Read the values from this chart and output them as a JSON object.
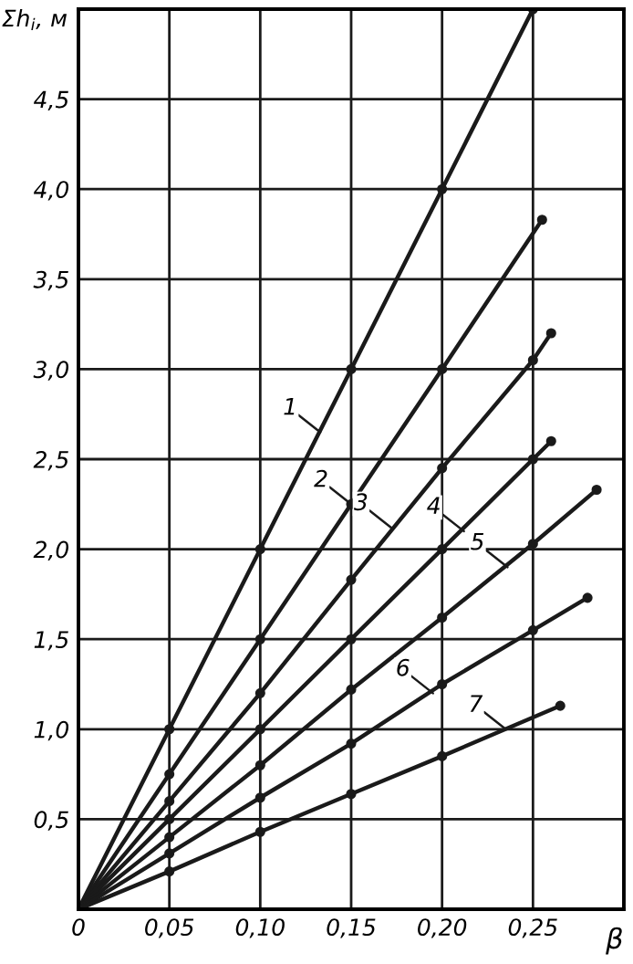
{
  "chart_data": {
    "type": "line",
    "xlabel": "β",
    "ylabel": "Σh$_{i}$, м",
    "xlim": [
      0,
      0.3
    ],
    "ylim": [
      0,
      5
    ],
    "xticks": [
      0,
      {
        "value": 0.05,
        "label": "0,05"
      },
      {
        "value": 0.1,
        "label": "0,10"
      },
      {
        "value": 0.15,
        "label": "0,15"
      },
      {
        "value": 0.2,
        "label": "0,20"
      },
      {
        "value": 0.25,
        "label": "0,25"
      },
      {
        "value": 0.3,
        "label": null
      }
    ],
    "yticks": [
      {
        "value": 0.5,
        "label": "0,5"
      },
      {
        "value": 1.0,
        "label": "1,0"
      },
      {
        "value": 1.5,
        "label": "1,5"
      },
      {
        "value": 2.0,
        "label": "2,0"
      },
      {
        "value": 2.5,
        "label": "2,5"
      },
      {
        "value": 3.0,
        "label": "3,0"
      },
      {
        "value": 3.5,
        "label": "3,5"
      },
      {
        "value": 4.0,
        "label": "4,0"
      },
      {
        "value": 4.5,
        "label": "4,5"
      },
      {
        "value": 5.0,
        "label": null
      }
    ],
    "grid": true,
    "marker": "circle",
    "line_style": "solid",
    "series": [
      {
        "color": "#1a1a1a",
        "x": [
          0,
          0.05,
          0.1,
          0.15,
          0.2,
          0.25
        ],
        "values": [
          0,
          1.0,
          2.0,
          3.0,
          4.0,
          5.0
        ]
      },
      {
        "color": "#1a1a1a",
        "x": [
          0,
          0.05,
          0.1,
          0.15,
          0.2,
          0.255
        ],
        "values": [
          0,
          0.75,
          1.5,
          2.25,
          3.0,
          3.83
        ]
      },
      {
        "color": "#1a1a1a",
        "x": [
          0,
          0.05,
          0.1,
          0.15,
          0.2,
          0.25,
          0.26
        ],
        "values": [
          0,
          0.6,
          1.2,
          1.83,
          2.45,
          3.05,
          3.2
        ]
      },
      {
        "color": "#1a1a1a",
        "x": [
          0,
          0.05,
          0.1,
          0.15,
          0.2,
          0.25,
          0.26
        ],
        "values": [
          0,
          0.5,
          1.0,
          1.5,
          2.0,
          2.5,
          2.6
        ]
      },
      {
        "color": "#1a1a1a",
        "x": [
          0,
          0.05,
          0.1,
          0.15,
          0.2,
          0.25,
          0.285
        ],
        "values": [
          0,
          0.4,
          0.8,
          1.22,
          1.62,
          2.03,
          2.33
        ]
      },
      {
        "color": "#1a1a1a",
        "x": [
          0,
          0.05,
          0.1,
          0.15,
          0.2,
          0.25,
          0.28
        ],
        "values": [
          0,
          0.31,
          0.62,
          0.92,
          1.25,
          1.55,
          1.73
        ]
      },
      {
        "color": "#1a1a1a",
        "x": [
          0,
          0.05,
          0.1,
          0.15,
          0.2,
          0.265
        ],
        "values": [
          0,
          0.21,
          0.43,
          0.64,
          0.85,
          1.13
        ]
      }
    ],
    "annotations": [
      {
        "text": "1",
        "x": 0.133,
        "y": 2.65
      },
      {
        "text": "2",
        "x": 0.15,
        "y": 2.25
      },
      {
        "text": "3",
        "x": 0.172,
        "y": 2.12
      },
      {
        "text": "4",
        "x": 0.212,
        "y": 2.1
      },
      {
        "text": "5",
        "x": 0.236,
        "y": 1.9
      },
      {
        "text": "6",
        "x": 0.195,
        "y": 1.2
      },
      {
        "text": "7",
        "x": 0.235,
        "y": 1.0
      }
    ]
  }
}
